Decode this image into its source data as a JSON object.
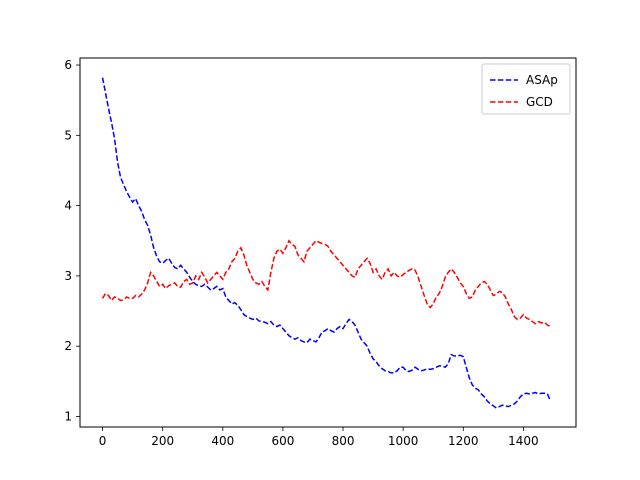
{
  "chart_data": {
    "type": "line",
    "title": "",
    "xlabel": "",
    "ylabel": "",
    "xlim": [
      -75,
      1575
    ],
    "ylim": [
      0.85,
      6.1
    ],
    "xticks": [
      0,
      200,
      400,
      600,
      800,
      1000,
      1200,
      1400
    ],
    "yticks": [
      1,
      2,
      3,
      4,
      5,
      6
    ],
    "grid": false,
    "legend_position": "top-right",
    "series": [
      {
        "name": "ASAp",
        "color": "#0000ff",
        "dash": "dashed",
        "x": [
          0,
          10,
          20,
          30,
          40,
          50,
          60,
          70,
          80,
          90,
          100,
          110,
          120,
          130,
          140,
          150,
          160,
          170,
          180,
          190,
          200,
          210,
          220,
          230,
          240,
          250,
          260,
          270,
          280,
          290,
          300,
          310,
          320,
          330,
          340,
          350,
          360,
          370,
          380,
          390,
          400,
          410,
          420,
          430,
          440,
          450,
          460,
          470,
          480,
          490,
          500,
          510,
          520,
          530,
          540,
          550,
          560,
          570,
          580,
          590,
          600,
          610,
          620,
          630,
          640,
          650,
          660,
          670,
          680,
          690,
          700,
          710,
          720,
          730,
          740,
          750,
          760,
          770,
          780,
          790,
          800,
          810,
          820,
          830,
          840,
          850,
          860,
          870,
          880,
          890,
          900,
          910,
          920,
          930,
          940,
          950,
          960,
          970,
          980,
          990,
          1000,
          1010,
          1020,
          1030,
          1040,
          1050,
          1060,
          1070,
          1080,
          1090,
          1100,
          1110,
          1120,
          1130,
          1140,
          1150,
          1160,
          1170,
          1180,
          1190,
          1200,
          1210,
          1220,
          1230,
          1240,
          1250,
          1260,
          1270,
          1280,
          1290,
          1300,
          1310,
          1320,
          1330,
          1340,
          1350,
          1360,
          1370,
          1380,
          1390,
          1400,
          1410,
          1420,
          1430,
          1440,
          1450,
          1460,
          1470,
          1480,
          1490
        ],
        "y": [
          5.82,
          5.6,
          5.38,
          5.18,
          4.95,
          4.62,
          4.4,
          4.3,
          4.2,
          4.12,
          4.05,
          4.1,
          4.0,
          3.92,
          3.8,
          3.72,
          3.58,
          3.4,
          3.28,
          3.2,
          3.18,
          3.22,
          3.25,
          3.18,
          3.12,
          3.1,
          3.15,
          3.1,
          3.05,
          2.98,
          2.92,
          2.88,
          2.86,
          2.85,
          2.88,
          2.84,
          2.8,
          2.82,
          2.85,
          2.8,
          2.82,
          2.7,
          2.65,
          2.6,
          2.62,
          2.58,
          2.52,
          2.45,
          2.42,
          2.4,
          2.38,
          2.4,
          2.36,
          2.35,
          2.34,
          2.32,
          2.35,
          2.3,
          2.28,
          2.3,
          2.25,
          2.2,
          2.15,
          2.12,
          2.1,
          2.12,
          2.08,
          2.06,
          2.05,
          2.1,
          2.08,
          2.06,
          2.12,
          2.2,
          2.22,
          2.25,
          2.22,
          2.2,
          2.25,
          2.28,
          2.25,
          2.32,
          2.38,
          2.35,
          2.3,
          2.2,
          2.1,
          2.05,
          2.0,
          1.9,
          1.82,
          1.78,
          1.72,
          1.68,
          1.65,
          1.64,
          1.62,
          1.62,
          1.65,
          1.7,
          1.7,
          1.65,
          1.64,
          1.66,
          1.7,
          1.67,
          1.65,
          1.66,
          1.68,
          1.67,
          1.68,
          1.7,
          1.72,
          1.72,
          1.7,
          1.75,
          1.88,
          1.86,
          1.86,
          1.87,
          1.85,
          1.7,
          1.55,
          1.45,
          1.4,
          1.38,
          1.32,
          1.28,
          1.22,
          1.18,
          1.15,
          1.12,
          1.14,
          1.16,
          1.15,
          1.14,
          1.16,
          1.18,
          1.22,
          1.28,
          1.32,
          1.33,
          1.32,
          1.33,
          1.34,
          1.32,
          1.33,
          1.33,
          1.32,
          1.22
        ]
      },
      {
        "name": "GCD",
        "color": "#ff0000",
        "dash": "dashed",
        "x": [
          0,
          10,
          20,
          30,
          40,
          50,
          60,
          70,
          80,
          90,
          100,
          110,
          120,
          130,
          140,
          150,
          160,
          170,
          180,
          190,
          200,
          210,
          220,
          230,
          240,
          250,
          260,
          270,
          280,
          290,
          300,
          310,
          320,
          330,
          340,
          350,
          360,
          370,
          380,
          390,
          400,
          410,
          420,
          430,
          440,
          450,
          460,
          470,
          480,
          490,
          500,
          510,
          520,
          530,
          540,
          550,
          560,
          570,
          580,
          590,
          600,
          610,
          620,
          630,
          640,
          650,
          660,
          670,
          680,
          690,
          700,
          710,
          720,
          730,
          740,
          750,
          760,
          770,
          780,
          790,
          800,
          810,
          820,
          830,
          840,
          850,
          860,
          870,
          880,
          890,
          900,
          910,
          920,
          930,
          940,
          950,
          960,
          970,
          980,
          990,
          1000,
          1010,
          1020,
          1030,
          1040,
          1050,
          1060,
          1070,
          1080,
          1090,
          1100,
          1110,
          1120,
          1130,
          1140,
          1150,
          1160,
          1170,
          1180,
          1190,
          1200,
          1210,
          1220,
          1230,
          1240,
          1250,
          1260,
          1270,
          1280,
          1290,
          1300,
          1310,
          1320,
          1330,
          1340,
          1350,
          1360,
          1370,
          1380,
          1390,
          1400,
          1410,
          1420,
          1430,
          1440,
          1450,
          1460,
          1470,
          1480,
          1490
        ],
        "y": [
          2.68,
          2.75,
          2.72,
          2.65,
          2.7,
          2.68,
          2.65,
          2.66,
          2.7,
          2.68,
          2.68,
          2.72,
          2.7,
          2.74,
          2.8,
          2.9,
          3.05,
          3.0,
          2.92,
          2.85,
          2.88,
          2.82,
          2.86,
          2.88,
          2.9,
          2.85,
          2.84,
          2.92,
          2.95,
          2.88,
          2.9,
          3.0,
          2.95,
          3.05,
          2.98,
          2.9,
          2.95,
          3.0,
          3.05,
          3.0,
          2.95,
          3.05,
          3.1,
          3.2,
          3.25,
          3.35,
          3.4,
          3.3,
          3.15,
          3.05,
          2.95,
          2.9,
          2.88,
          2.92,
          2.85,
          2.8,
          3.05,
          3.25,
          3.35,
          3.38,
          3.32,
          3.4,
          3.5,
          3.45,
          3.42,
          3.3,
          3.25,
          3.2,
          3.35,
          3.4,
          3.45,
          3.5,
          3.48,
          3.46,
          3.45,
          3.42,
          3.35,
          3.3,
          3.25,
          3.2,
          3.15,
          3.1,
          3.05,
          3.0,
          2.98,
          3.1,
          3.15,
          3.2,
          3.25,
          3.18,
          3.05,
          3.1,
          3.0,
          2.95,
          3.05,
          3.1,
          3.0,
          3.05,
          3.0,
          2.98,
          3.02,
          3.05,
          3.08,
          3.1,
          3.08,
          2.98,
          2.85,
          2.72,
          2.6,
          2.55,
          2.6,
          2.7,
          2.75,
          2.85,
          2.98,
          3.05,
          3.1,
          3.05,
          2.98,
          2.9,
          2.85,
          2.75,
          2.68,
          2.7,
          2.8,
          2.85,
          2.9,
          2.92,
          2.88,
          2.8,
          2.72,
          2.74,
          2.78,
          2.76,
          2.7,
          2.6,
          2.52,
          2.42,
          2.38,
          2.4,
          2.45,
          2.4,
          2.38,
          2.35,
          2.32,
          2.35,
          2.33,
          2.34,
          2.3,
          2.28
        ]
      }
    ]
  }
}
